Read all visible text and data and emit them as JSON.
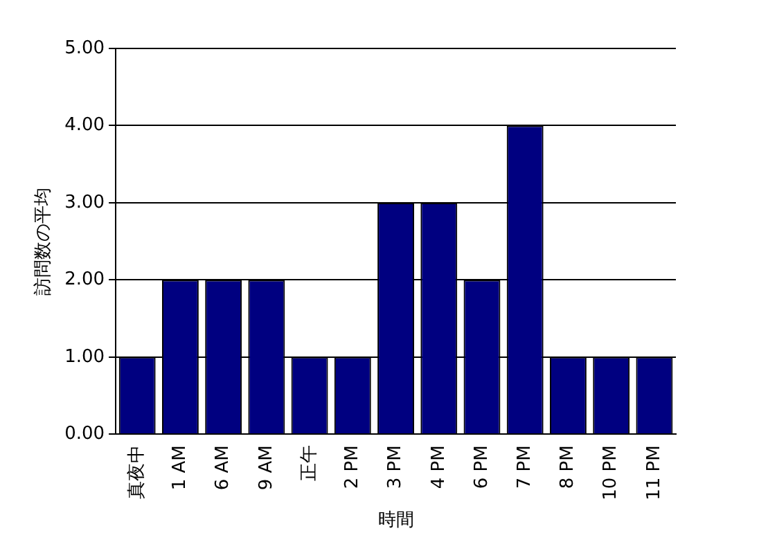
{
  "chart_data": {
    "type": "bar",
    "xlabel": "時間",
    "ylabel": "訪問数の平均",
    "categories": [
      "真夜中",
      "1 AM",
      "6 AM",
      "9 AM",
      "正午",
      "2 PM",
      "3 PM",
      "4 PM",
      "6 PM",
      "7 PM",
      "8 PM",
      "10 PM",
      "11 PM"
    ],
    "values": [
      1,
      2,
      2,
      2,
      1,
      1,
      3,
      3,
      2,
      4,
      1,
      1,
      1
    ],
    "color": "#000080",
    "ylim": [
      0,
      5
    ],
    "yticks": [
      {
        "value": 0,
        "label": "0.00"
      },
      {
        "value": 1,
        "label": "1.00"
      },
      {
        "value": 2,
        "label": "2.00"
      },
      {
        "value": 3,
        "label": "3.00"
      },
      {
        "value": 4,
        "label": "4.00"
      },
      {
        "value": 5,
        "label": "5.00"
      }
    ],
    "grid": "y",
    "legend": false
  }
}
